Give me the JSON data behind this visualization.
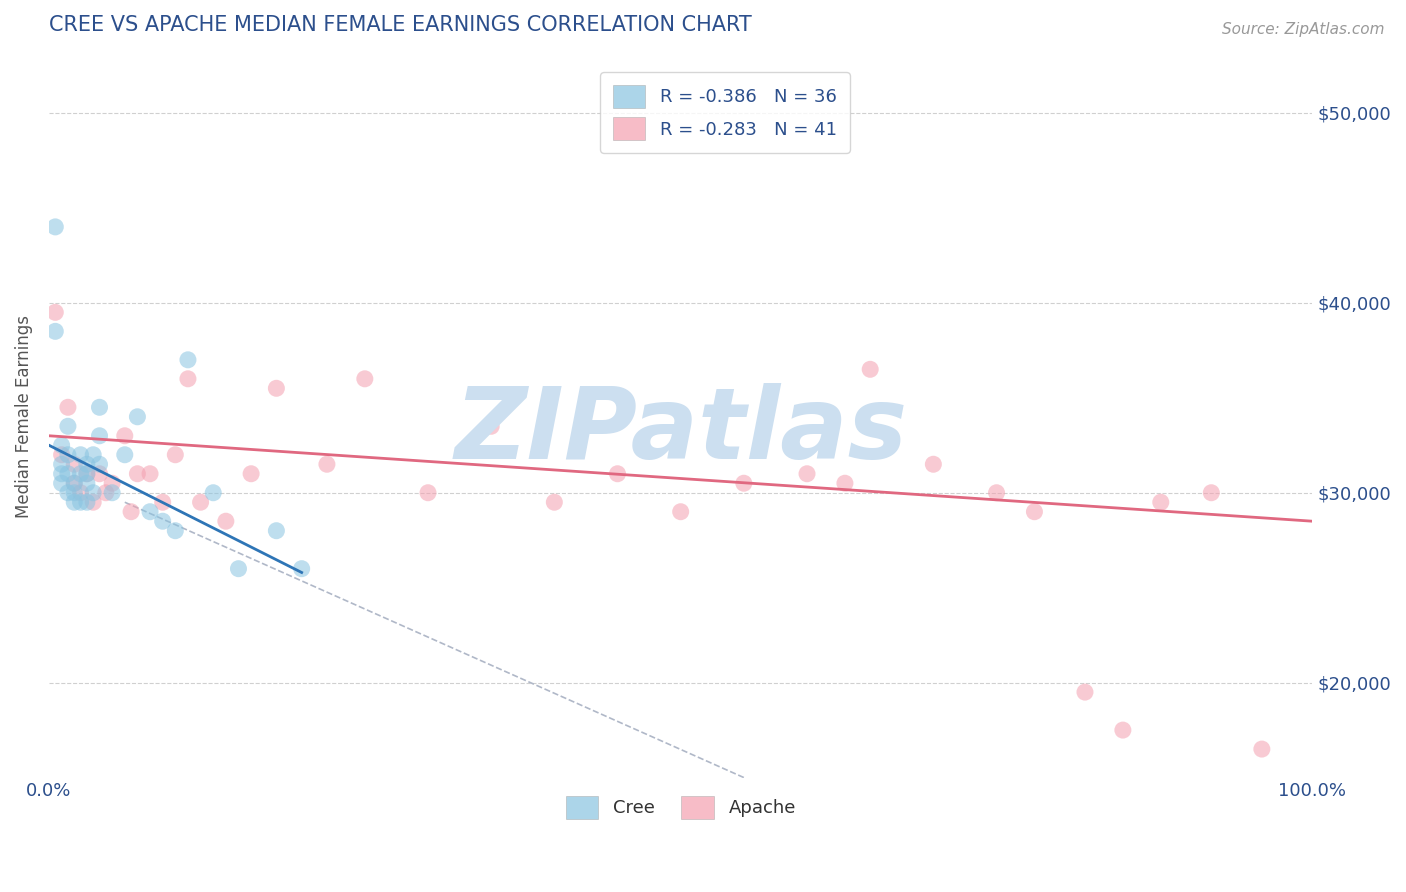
{
  "title": "CREE VS APACHE MEDIAN FEMALE EARNINGS CORRELATION CHART",
  "source": "Source: ZipAtlas.com",
  "ylabel": "Median Female Earnings",
  "xlim": [
    0,
    1
  ],
  "ylim": [
    15000,
    53000
  ],
  "yticks": [
    20000,
    30000,
    40000,
    50000
  ],
  "ytick_labels": [
    "$20,000",
    "$30,000",
    "$40,000",
    "$50,000"
  ],
  "xticks": [
    0.0,
    1.0
  ],
  "xtick_labels": [
    "0.0%",
    "100.0%"
  ],
  "cree_color": "#89c4e1",
  "apache_color": "#f4a0b0",
  "cree_R": -0.386,
  "cree_N": 36,
  "apache_R": -0.283,
  "apache_N": 41,
  "background_color": "#ffffff",
  "grid_color": "#d0d0d0",
  "watermark": "ZIPatlas",
  "watermark_color": "#ccdff0",
  "cree_points_x": [
    0.005,
    0.005,
    0.01,
    0.01,
    0.01,
    0.01,
    0.015,
    0.015,
    0.015,
    0.015,
    0.02,
    0.02,
    0.02,
    0.025,
    0.025,
    0.025,
    0.03,
    0.03,
    0.03,
    0.03,
    0.035,
    0.035,
    0.04,
    0.04,
    0.04,
    0.05,
    0.06,
    0.07,
    0.08,
    0.09,
    0.1,
    0.11,
    0.13,
    0.15,
    0.18,
    0.2
  ],
  "cree_points_y": [
    44000,
    38500,
    32500,
    31500,
    31000,
    30500,
    33500,
    32000,
    31000,
    30000,
    30500,
    30000,
    29500,
    32000,
    31000,
    29500,
    31500,
    31000,
    30500,
    29500,
    32000,
    30000,
    34500,
    33000,
    31500,
    30000,
    32000,
    34000,
    29000,
    28500,
    28000,
    37000,
    30000,
    26000,
    28000,
    26000
  ],
  "apache_points_x": [
    0.005,
    0.01,
    0.015,
    0.02,
    0.02,
    0.025,
    0.03,
    0.035,
    0.04,
    0.045,
    0.05,
    0.06,
    0.065,
    0.07,
    0.08,
    0.09,
    0.1,
    0.11,
    0.12,
    0.14,
    0.16,
    0.18,
    0.22,
    0.25,
    0.3,
    0.35,
    0.4,
    0.45,
    0.5,
    0.55,
    0.6,
    0.63,
    0.65,
    0.7,
    0.75,
    0.78,
    0.82,
    0.85,
    0.88,
    0.92,
    0.96
  ],
  "apache_points_y": [
    39500,
    32000,
    34500,
    31500,
    30500,
    30000,
    31000,
    29500,
    31000,
    30000,
    30500,
    33000,
    29000,
    31000,
    31000,
    29500,
    32000,
    36000,
    29500,
    28500,
    31000,
    35500,
    31500,
    36000,
    30000,
    33500,
    29500,
    31000,
    29000,
    30500,
    31000,
    30500,
    36500,
    31500,
    30000,
    29000,
    19500,
    17500,
    29500,
    30000,
    16500
  ],
  "title_color": "#2c4f8c",
  "axis_label_color": "#555555",
  "tick_label_color": "#2c4f8c",
  "cree_line_x0": 0.0,
  "cree_line_x1": 0.2,
  "cree_line_y0": 32500,
  "cree_line_y1": 25800,
  "apache_line_x0": 0.0,
  "apache_line_x1": 1.0,
  "apache_line_y0": 33000,
  "apache_line_y1": 28500,
  "dash_line_x0": 0.06,
  "dash_line_x1": 0.55,
  "dash_line_y0": 29500,
  "dash_line_y1": 15000
}
